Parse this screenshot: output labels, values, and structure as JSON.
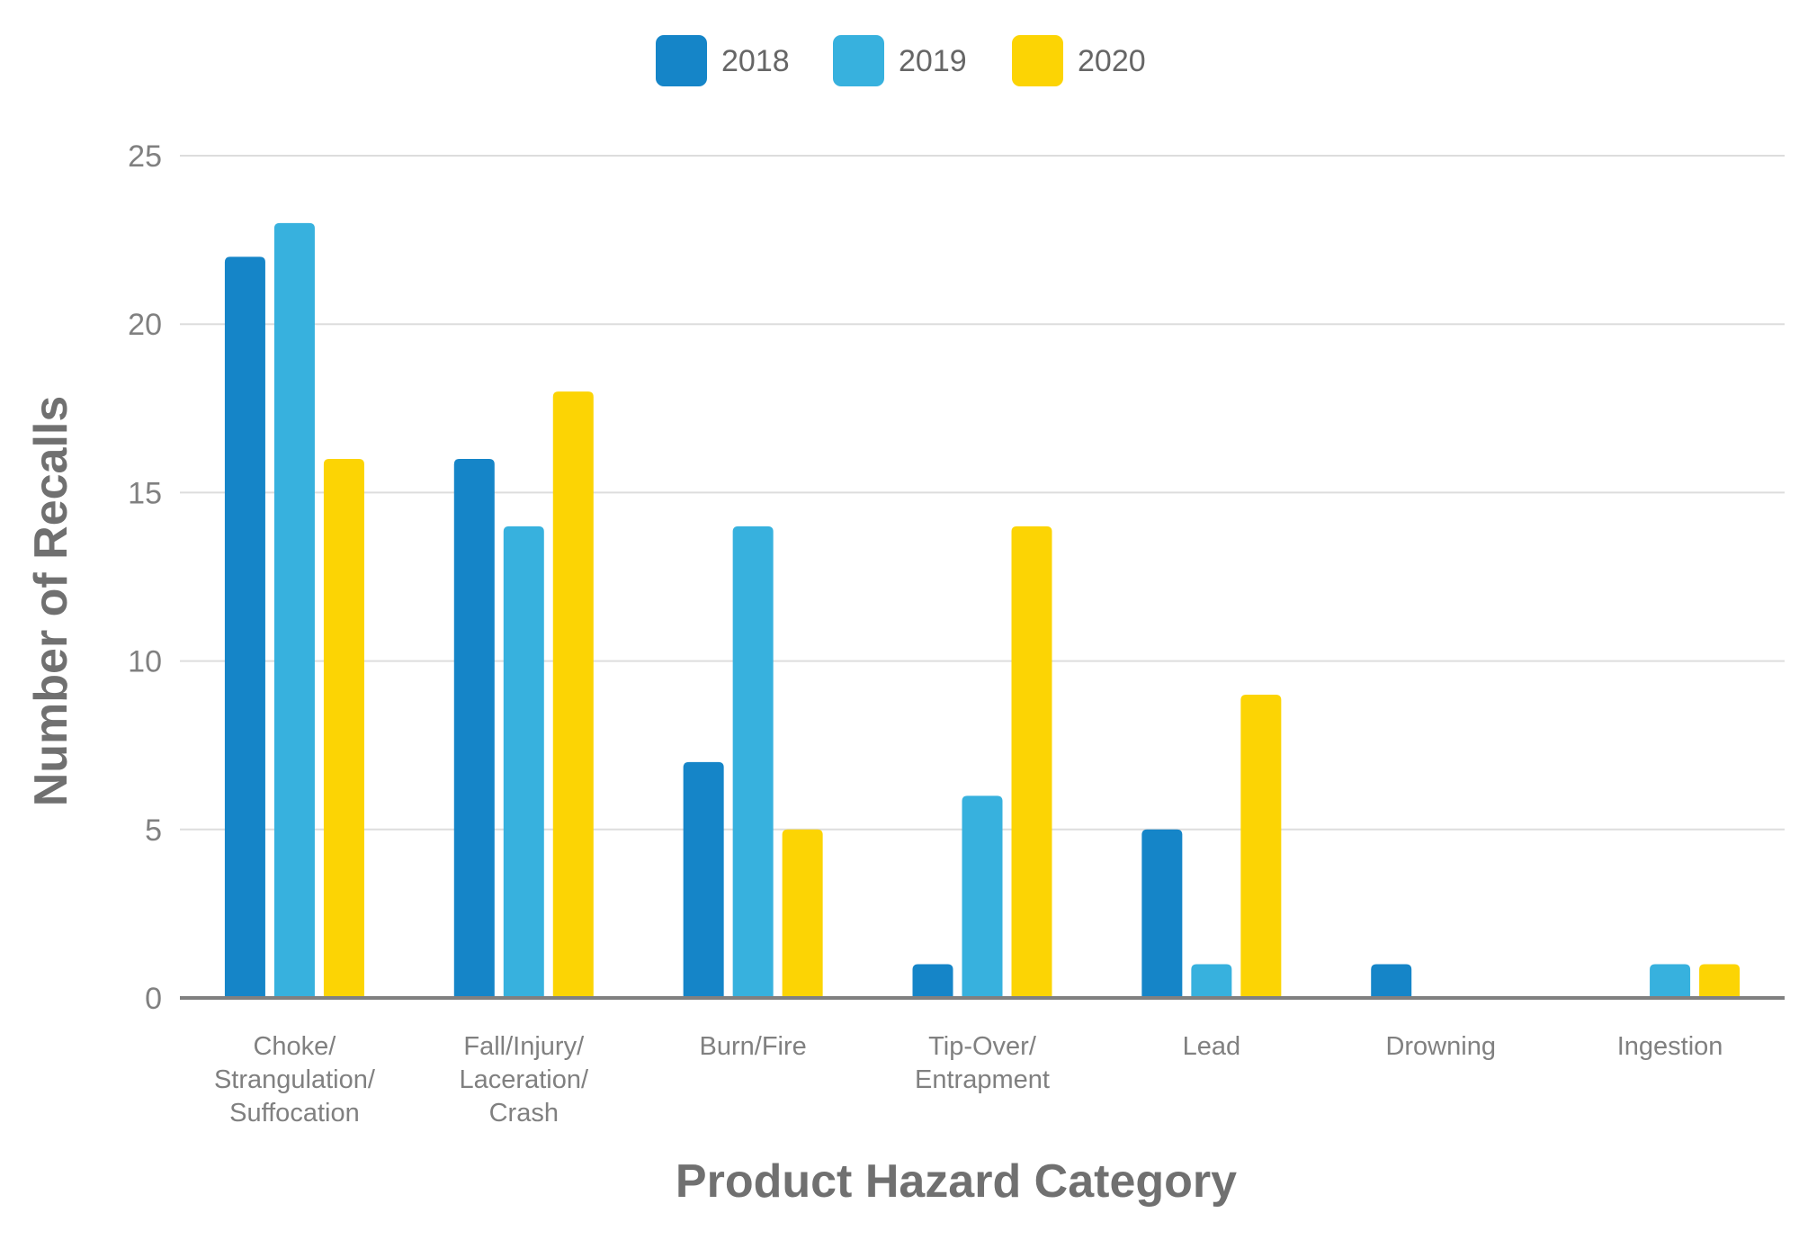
{
  "chart_data": {
    "type": "bar",
    "xlabel": "Product Hazard Category",
    "ylabel": "Number of Recalls",
    "ylim": [
      0,
      25
    ],
    "yticks": [
      0,
      5,
      10,
      15,
      20,
      25
    ],
    "grid": true,
    "legend_position": "top-center",
    "categories": [
      [
        "Choke/",
        "Strangulation/",
        "Suffocation"
      ],
      [
        "Fall/Injury/",
        "Laceration/",
        "Crash"
      ],
      [
        "Burn/Fire"
      ],
      [
        "Tip-Over/",
        "Entrapment"
      ],
      [
        "Lead"
      ],
      [
        "Drowning"
      ],
      [
        "Ingestion"
      ]
    ],
    "series": [
      {
        "name": "2018",
        "color": "#1585c8",
        "values": [
          22,
          16,
          7,
          1,
          5,
          1,
          0
        ]
      },
      {
        "name": "2019",
        "color": "#37b1de",
        "values": [
          23,
          14,
          14,
          6,
          1,
          0,
          1
        ]
      },
      {
        "name": "2020",
        "color": "#fcd404",
        "values": [
          16,
          18,
          5,
          14,
          9,
          0,
          1
        ]
      }
    ]
  }
}
